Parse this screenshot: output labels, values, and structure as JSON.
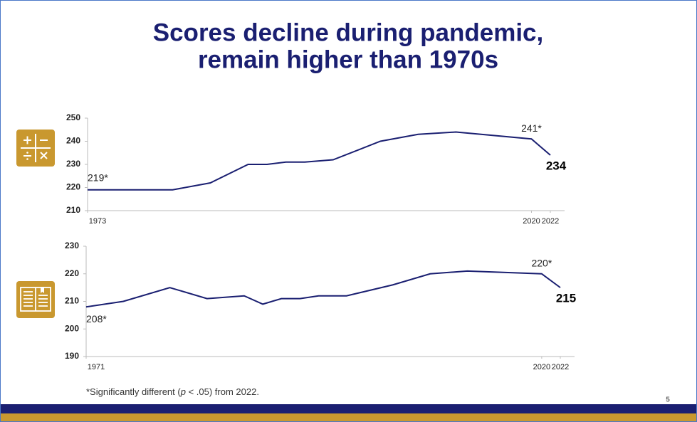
{
  "title_lines": [
    "Scores decline during pandemic,",
    "remain higher than 1970s"
  ],
  "chart_data": [
    {
      "type": "line",
      "color": "#1a1f71",
      "x": [
        1973,
        1978,
        1982,
        1986,
        1990,
        1992,
        1994,
        1996,
        1999,
        2004,
        2008,
        2012,
        2020,
        2022
      ],
      "values": [
        219,
        219,
        219,
        222,
        230,
        230,
        231,
        231,
        232,
        240,
        243,
        244,
        241,
        234
      ],
      "value_labels": [
        "219*",
        null,
        null,
        null,
        null,
        null,
        null,
        null,
        null,
        null,
        null,
        null,
        "241*",
        "234"
      ],
      "xlim": [
        1973,
        2022
      ],
      "ylim": [
        210,
        250
      ],
      "xticks": [
        1973,
        2020,
        2022
      ],
      "yticks": [
        210,
        220,
        230,
        240,
        250
      ]
    },
    {
      "type": "line",
      "color": "#1a1f71",
      "x": [
        1971,
        1975,
        1980,
        1984,
        1988,
        1990,
        1992,
        1994,
        1996,
        1999,
        2004,
        2008,
        2012,
        2020,
        2022
      ],
      "values": [
        208,
        210,
        215,
        211,
        212,
        209,
        211,
        211,
        212,
        212,
        216,
        220,
        221,
        220,
        215
      ],
      "value_labels": [
        "208*",
        null,
        null,
        null,
        null,
        null,
        null,
        null,
        null,
        null,
        null,
        null,
        null,
        "220*",
        "215"
      ],
      "xlim": [
        1971,
        2022
      ],
      "ylim": [
        190,
        230
      ],
      "xticks": [
        1971,
        2020,
        2022
      ],
      "yticks": [
        190,
        200,
        210,
        220,
        230
      ]
    }
  ],
  "footnote": {
    "before": "*Significantly different (",
    "italic": "p",
    "after": " < .05) from 2022."
  },
  "page_number": "5"
}
